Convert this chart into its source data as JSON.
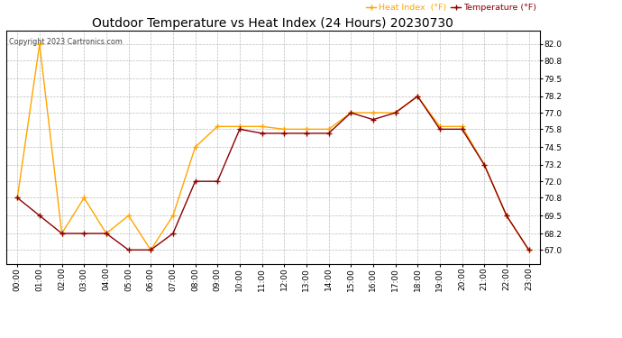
{
  "title": "Outdoor Temperature vs Heat Index (24 Hours) 20230730",
  "copyright": "Copyright 2023 Cartronics.com",
  "legend_heat": "Heat Index  (°F)",
  "legend_temp": "Temperature (°F)",
  "hours": [
    "00:00",
    "01:00",
    "02:00",
    "03:00",
    "04:00",
    "05:00",
    "06:00",
    "07:00",
    "08:00",
    "09:00",
    "10:00",
    "11:00",
    "12:00",
    "13:00",
    "14:00",
    "15:00",
    "16:00",
    "17:00",
    "18:00",
    "19:00",
    "20:00",
    "21:00",
    "22:00",
    "23:00"
  ],
  "heat_index": [
    70.8,
    82.0,
    68.2,
    70.8,
    68.2,
    69.5,
    67.0,
    69.5,
    74.5,
    76.0,
    76.0,
    76.0,
    75.8,
    75.8,
    75.8,
    77.0,
    77.0,
    77.0,
    78.2,
    76.0,
    76.0,
    73.2,
    69.5,
    67.0
  ],
  "temperature": [
    70.8,
    69.5,
    68.2,
    68.2,
    68.2,
    67.0,
    67.0,
    68.2,
    72.0,
    72.0,
    75.8,
    75.5,
    75.5,
    75.5,
    75.5,
    77.0,
    76.5,
    77.0,
    78.2,
    75.8,
    75.8,
    73.2,
    69.5,
    67.0
  ],
  "ylim": [
    66.0,
    83.0
  ],
  "yticks": [
    67.0,
    68.2,
    69.5,
    70.8,
    72.0,
    73.2,
    74.5,
    75.8,
    77.0,
    78.2,
    79.5,
    80.8,
    82.0
  ],
  "heat_color": "#FFA500",
  "temp_color": "#8B0000",
  "background_color": "#ffffff",
  "grid_color": "#bbbbbb",
  "title_fontsize": 10,
  "marker": "+"
}
